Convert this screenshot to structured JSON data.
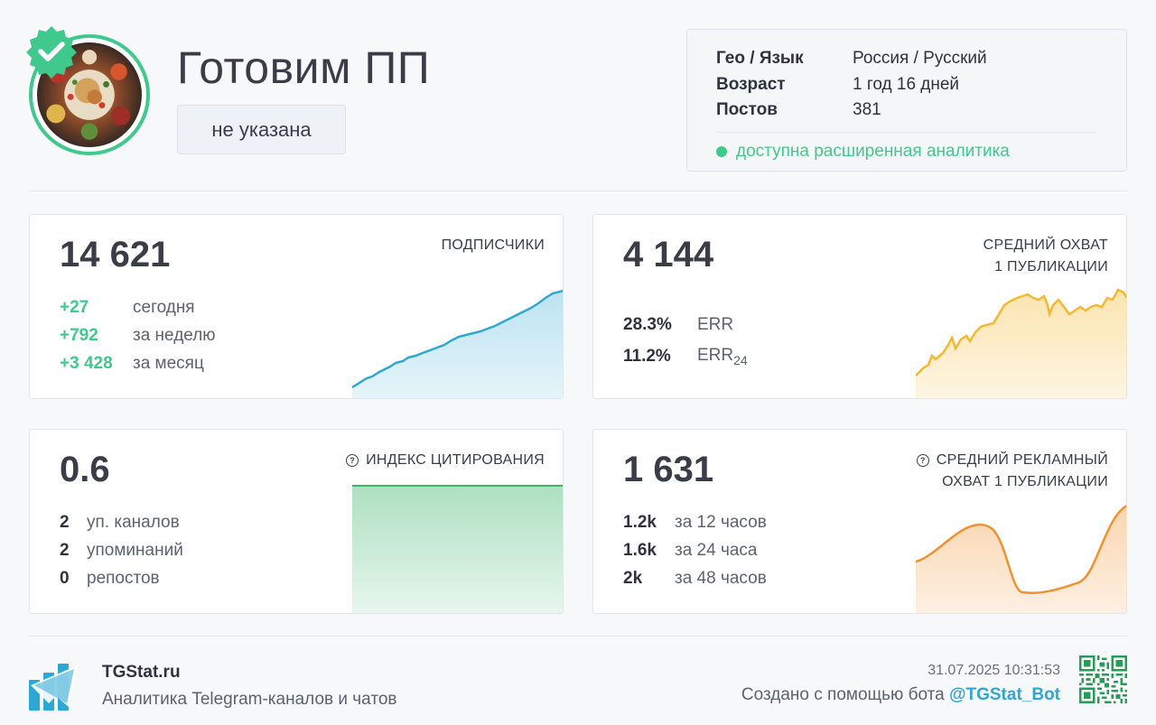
{
  "channel": {
    "title": "Готовим ПП",
    "category": "не указана"
  },
  "info": {
    "rows": [
      {
        "key": "Гео / Язык",
        "value": "Россия / Русский"
      },
      {
        "key": "Возраст",
        "value": "1 год 16 дней"
      },
      {
        "key": "Постов",
        "value": "381"
      }
    ],
    "status": "доступна расширенная аналитика"
  },
  "cards": {
    "subscribers": {
      "value": "14 621",
      "label": "ПОДПИСЧИКИ",
      "rows": [
        {
          "num": "+27",
          "text": "сегодня"
        },
        {
          "num": "+792",
          "text": "за неделю"
        },
        {
          "num": "+3 428",
          "text": "за месяц"
        }
      ]
    },
    "reach": {
      "value": "4 144",
      "label": "СРЕДНИЙ ОХВАТ\n1 ПУБЛИКАЦИИ",
      "rows": [
        {
          "num": "28.3%",
          "text": "ERR"
        },
        {
          "num": "11.2%",
          "text": "ERR",
          "sub": "24"
        }
      ]
    },
    "citation": {
      "value": "0.6",
      "label": "ИНДЕКС ЦИТИРОВАНИЯ",
      "rows": [
        {
          "num": "2",
          "text": "уп. каналов"
        },
        {
          "num": "2",
          "text": "упоминаний"
        },
        {
          "num": "0",
          "text": "репостов"
        }
      ]
    },
    "ad_reach": {
      "value": "1 631",
      "label": "СРЕДНИЙ РЕКЛАМНЫЙ\nОХВАТ 1 ПУБЛИКАЦИИ",
      "rows": [
        {
          "num": "1.2k",
          "text": "за 12 часов"
        },
        {
          "num": "1.6k",
          "text": "за 24 часа"
        },
        {
          "num": "2k",
          "text": "за 48 часов"
        }
      ]
    }
  },
  "footer": {
    "brand": "TGStat.ru",
    "tagline": "Аналитика Telegram-каналов и чатов",
    "timestamp": "31.07.2025 10:31:53",
    "created_prefix": "Создано с помощью бота",
    "bot": "@TGStat_Bot"
  },
  "colors": {
    "green": "#3fc98d",
    "blue": "#2ea7d2",
    "yellow": "#f5b82e",
    "orange": "#f0922f",
    "citation_green": "#3bb56a"
  }
}
